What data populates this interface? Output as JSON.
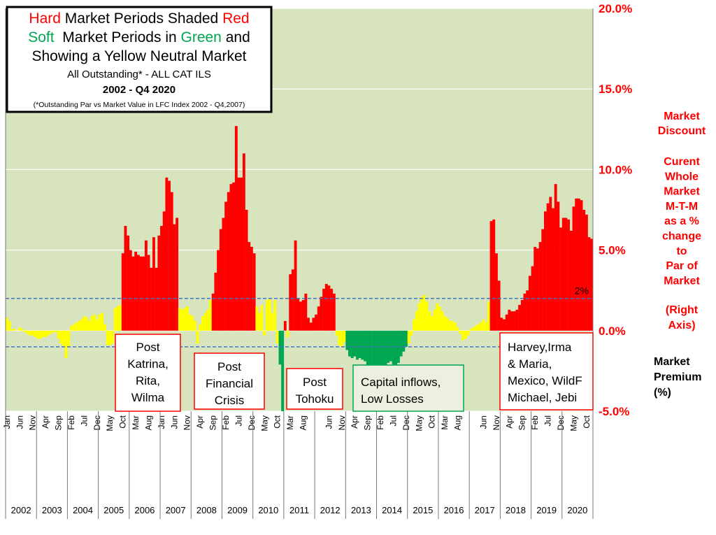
{
  "chart_data": {
    "type": "bar",
    "title_box": {
      "line1": [
        "Hard",
        " Market Periods Shaded ",
        "Red"
      ],
      "line2": [
        "Soft",
        "  Market Periods in ",
        "Green",
        " and"
      ],
      "line3": "Showing a Yellow Neutral Market",
      "line4": "All Outstanding* - ALL CAT ILS",
      "line5": "2002 - Q4 2020",
      "line6": "(*Outstanding Par vs Market Value in LFC Index 2002 - Q4,2007)"
    },
    "side_labels": {
      "discount": [
        "Market",
        "Discount"
      ],
      "description": [
        "Curent",
        "Whole",
        "Market",
        "M-T-M",
        "as a %",
        "change",
        "to",
        "Par of",
        "Market"
      ],
      "axis_note": [
        "(Right",
        "Axis)"
      ],
      "premium": [
        "Market",
        "Premium",
        "(%)"
      ]
    },
    "annotations": [
      {
        "lines": [
          "Post",
          "Katrina,",
          "Rita,",
          "Wilma"
        ]
      },
      {
        "lines": [
          "Post",
          "Financial",
          "Crisis"
        ]
      },
      {
        "lines": [
          "Post",
          "Tohoku"
        ]
      },
      {
        "lines": [
          "Capital inflows,",
          "Low Losses"
        ]
      },
      {
        "lines": [
          "Harvey,Irma",
          "& Maria,",
          "Mexico, WildF",
          "Michael, Jebi"
        ]
      }
    ],
    "years": [
      "2002",
      "2003",
      "2004",
      "2005",
      "2006",
      "2007",
      "2008",
      "2009",
      "2010",
      "2011",
      "2012",
      "2013",
      "2014",
      "2015",
      "2016",
      "2017",
      "2018",
      "2019",
      "2020"
    ],
    "categories": [
      "Jan",
      null,
      null,
      null,
      null,
      "Jun",
      null,
      null,
      null,
      null,
      "Nov",
      null,
      null,
      null,
      null,
      "Apr",
      null,
      null,
      null,
      null,
      "Sep",
      null,
      null,
      null,
      null,
      "Feb",
      null,
      null,
      null,
      null,
      "Jul",
      null,
      null,
      null,
      null,
      "Dec",
      null,
      null,
      null,
      null,
      "May",
      null,
      null,
      null,
      null,
      "Oct",
      null,
      null,
      null,
      null,
      "Mar",
      null,
      null,
      null,
      null,
      "Aug",
      null,
      null,
      null,
      null,
      "Jan",
      null,
      null,
      null,
      null,
      "Jun",
      null,
      null,
      null,
      null,
      "Nov",
      null,
      null,
      null,
      null,
      "Apr",
      null,
      null,
      null,
      null,
      "Sep",
      null,
      null,
      null,
      null,
      "Feb",
      null,
      null,
      null,
      null,
      "Jul",
      null,
      null,
      null,
      null,
      "Dec",
      null,
      null,
      null,
      null,
      "May",
      null,
      null,
      null,
      null,
      "Oct",
      null,
      null,
      null,
      null,
      "Mar",
      null,
      null,
      null,
      null,
      "Aug",
      null,
      null,
      null,
      null,
      null,
      null,
      null,
      null,
      null,
      "Jun",
      null,
      null,
      null,
      null,
      "Nov",
      null,
      null,
      null,
      null,
      "Apr",
      null,
      null,
      null,
      null,
      "Sep",
      null,
      null,
      null,
      null,
      "Feb",
      null,
      null,
      null,
      null,
      "Jul",
      null,
      null,
      null,
      null,
      "Dec",
      null,
      null,
      null,
      null,
      "May",
      null,
      null,
      null,
      null,
      "Oct",
      null,
      null,
      null,
      null,
      "Mar",
      null,
      null,
      null,
      null,
      "Aug",
      null,
      null,
      null,
      null,
      null,
      null,
      null,
      null,
      null,
      "Jun",
      null,
      null,
      null,
      null,
      "Nov",
      null,
      null,
      null,
      null,
      "Apr",
      null,
      null,
      null,
      null,
      "Sep",
      null,
      null,
      null,
      null,
      "Feb",
      null,
      null,
      null,
      null,
      "Jul",
      null,
      null,
      null,
      null,
      "Dec",
      null,
      null,
      null,
      null,
      "May",
      null,
      null,
      null,
      null,
      "Oct",
      null,
      null
    ],
    "values": [
      0.8,
      0.6,
      0.1,
      0.1,
      0.0,
      0.2,
      0.1,
      -0.1,
      -0.2,
      -0.3,
      -0.3,
      -0.4,
      -0.5,
      -0.5,
      -0.4,
      -0.4,
      -0.3,
      -0.2,
      -0.1,
      -0.1,
      -0.5,
      -0.8,
      -1.0,
      -1.7,
      -1.0,
      0.3,
      0.4,
      0.5,
      0.6,
      0.7,
      0.9,
      0.8,
      0.6,
      0.9,
      1.0,
      0.7,
      1.0,
      1.1,
      0.4,
      -0.9,
      -0.9,
      -0.8,
      1.4,
      1.5,
      1.6,
      4.8,
      6.5,
      5.9,
      5.0,
      4.6,
      4.9,
      4.7,
      4.6,
      4.6,
      5.6,
      4.7,
      3.9,
      5.8,
      3.9,
      5.9,
      6.5,
      7.4,
      9.5,
      9.3,
      8.6,
      6.6,
      7.0,
      1.4,
      1.3,
      1.4,
      1.5,
      1.0,
      0.9,
      0.6,
      -0.8,
      0.4,
      0.9,
      1.1,
      1.3,
      1.9,
      2.3,
      3.6,
      5.0,
      6.3,
      7.0,
      8.0,
      8.6,
      9.1,
      9.2,
      12.7,
      9.5,
      9.5,
      11.0,
      7.5,
      5.5,
      5.2,
      4.8,
      1.5,
      1.1,
      1.6,
      -0.3,
      1.9,
      2.0,
      1.1,
      1.9,
      -0.8,
      -2.1,
      -5.0,
      0.6,
      -0.4,
      3.5,
      3.8,
      5.6,
      2.0,
      1.8,
      1.9,
      2.3,
      0.8,
      0.5,
      0.8,
      1.0,
      1.5,
      2.1,
      2.6,
      2.9,
      2.8,
      2.6,
      2.3,
      -0.3,
      -0.9,
      -1.0,
      -0.7,
      -1.2,
      -1.6,
      -1.7,
      -1.6,
      -1.8,
      -1.7,
      -1.8,
      -1.9,
      -2.3,
      -2.5,
      -2.7,
      -3.3,
      -3.3,
      -3.1,
      -2.5,
      -2.3,
      -2.0,
      -1.9,
      -2.1,
      -2.2,
      -2.0,
      -1.6,
      -1.3,
      -1.0,
      -0.8,
      -0.3,
      0.7,
      1.2,
      1.7,
      2.1,
      2.2,
      1.8,
      1.2,
      0.9,
      1.3,
      1.7,
      1.5,
      1.2,
      0.9,
      0.8,
      0.6,
      0.6,
      0.5,
      0.2,
      -0.2,
      -0.6,
      -0.5,
      -0.3,
      0.1,
      0.2,
      0.3,
      0.4,
      0.5,
      0.7,
      0.5,
      1.8,
      6.8,
      6.9,
      4.8,
      3.1,
      0.8,
      0.7,
      1.0,
      1.3,
      1.2,
      1.2,
      1.3,
      1.6,
      1.9,
      2.3,
      2.5,
      3.4,
      4.0,
      5.2,
      5.1,
      5.5,
      6.3,
      7.4,
      7.9,
      8.3,
      7.6,
      9.1,
      8.0,
      6.4,
      7.0,
      7.0,
      6.9,
      6.2,
      7.7,
      8.2,
      8.2,
      8.1,
      7.5,
      7.2,
      5.8,
      5.7
    ],
    "colors": [
      "#ff0",
      "#ff0",
      "#ff0",
      "#ff0",
      "#ff0",
      "#ff0",
      "#ff0",
      "#ff0",
      "#ff0",
      "#ff0",
      "#ff0",
      "#ff0",
      "#ff0",
      "#ff0",
      "#ff0",
      "#ff0",
      "#ff0",
      "#ff0",
      "#ff0",
      "#ff0",
      "#ff0",
      "#ff0",
      "#ff0",
      "#ff0",
      "#ff0",
      "#ff0",
      "#ff0",
      "#ff0",
      "#ff0",
      "#ff0",
      "#ff0",
      "#ff0",
      "#ff0",
      "#ff0",
      "#ff0",
      "#ff0",
      "#ff0",
      "#ff0",
      "#ff0",
      "#ff0",
      "#ff0",
      "#ff0",
      "#ff0",
      "#ff0",
      "#ff0",
      "#f00",
      "#f00",
      "#f00",
      "#f00",
      "#f00",
      "#f00",
      "#f00",
      "#f00",
      "#f00",
      "#f00",
      "#f00",
      "#f00",
      "#f00",
      "#f00",
      "#f00",
      "#f00",
      "#f00",
      "#f00",
      "#f00",
      "#f00",
      "#f00",
      "#f00",
      "#ff0",
      "#ff0",
      "#ff0",
      "#ff0",
      "#ff0",
      "#ff0",
      "#ff0",
      "#ff0",
      "#ff0",
      "#ff0",
      "#ff0",
      "#ff0",
      "#ff0",
      "#f00",
      "#f00",
      "#f00",
      "#f00",
      "#f00",
      "#f00",
      "#f00",
      "#f00",
      "#f00",
      "#f00",
      "#f00",
      "#f00",
      "#f00",
      "#f00",
      "#f00",
      "#f00",
      "#f00",
      "#ff0",
      "#ff0",
      "#ff0",
      "#ff0",
      "#ff0",
      "#ff0",
      "#ff0",
      "#ff0",
      "#ff0",
      "#00a651",
      "#00a651",
      "#f00",
      "#ff0",
      "#f00",
      "#f00",
      "#f00",
      "#f00",
      "#f00",
      "#f00",
      "#f00",
      "#f00",
      "#f00",
      "#f00",
      "#f00",
      "#f00",
      "#f00",
      "#f00",
      "#f00",
      "#f00",
      "#f00",
      "#f00",
      "#ff0",
      "#ff0",
      "#ff0",
      "#ff0",
      "#00a651",
      "#00a651",
      "#00a651",
      "#00a651",
      "#00a651",
      "#00a651",
      "#00a651",
      "#00a651",
      "#00a651",
      "#00a651",
      "#00a651",
      "#00a651",
      "#00a651",
      "#00a651",
      "#00a651",
      "#00a651",
      "#00a651",
      "#00a651",
      "#00a651",
      "#00a651",
      "#00a651",
      "#00a651",
      "#00a651",
      "#00a651",
      "#ff0",
      "#ff0",
      "#ff0",
      "#ff0",
      "#ff0",
      "#ff0",
      "#ff0",
      "#ff0",
      "#ff0",
      "#ff0",
      "#ff0",
      "#ff0",
      "#ff0",
      "#ff0",
      "#ff0",
      "#ff0",
      "#ff0",
      "#ff0",
      "#ff0",
      "#ff0",
      "#ff0",
      "#ff0",
      "#ff0",
      "#ff0",
      "#ff0",
      "#ff0",
      "#ff0",
      "#ff0",
      "#ff0",
      "#ff0",
      "#ff0",
      "#ff0",
      "#f00",
      "#f00",
      "#f00",
      "#f00",
      "#f00",
      "#f00",
      "#f00",
      "#f00",
      "#f00",
      "#f00",
      "#f00",
      "#f00",
      "#f00",
      "#f00",
      "#f00",
      "#f00",
      "#f00",
      "#f00",
      "#f00",
      "#f00",
      "#f00",
      "#f00",
      "#f00",
      "#f00",
      "#f00",
      "#f00",
      "#f00",
      "#f00",
      "#f00",
      "#f00",
      "#f00",
      "#f00",
      "#f00",
      "#f00",
      "#f00",
      "#f00",
      "#f00",
      "#f00",
      "#f00",
      "#f00"
    ],
    "ylim": [
      -5,
      20
    ],
    "yticks": [
      {
        "value": -5,
        "label": "-5.0%"
      },
      {
        "value": 0,
        "label": "0.0%"
      },
      {
        "value": 5,
        "label": "5.0%"
      },
      {
        "value": 10,
        "label": "10.0%"
      },
      {
        "value": 15,
        "label": "15.0%"
      },
      {
        "value": 20,
        "label": "20.0%"
      }
    ],
    "y_axis_side": "right",
    "grid": true,
    "grid_color": "#ffffff",
    "plot_background": "#d7e4bd",
    "ref_lines": [
      2,
      -1
    ],
    "ref_line_color": "#4472c4",
    "ref_label": "2%"
  }
}
